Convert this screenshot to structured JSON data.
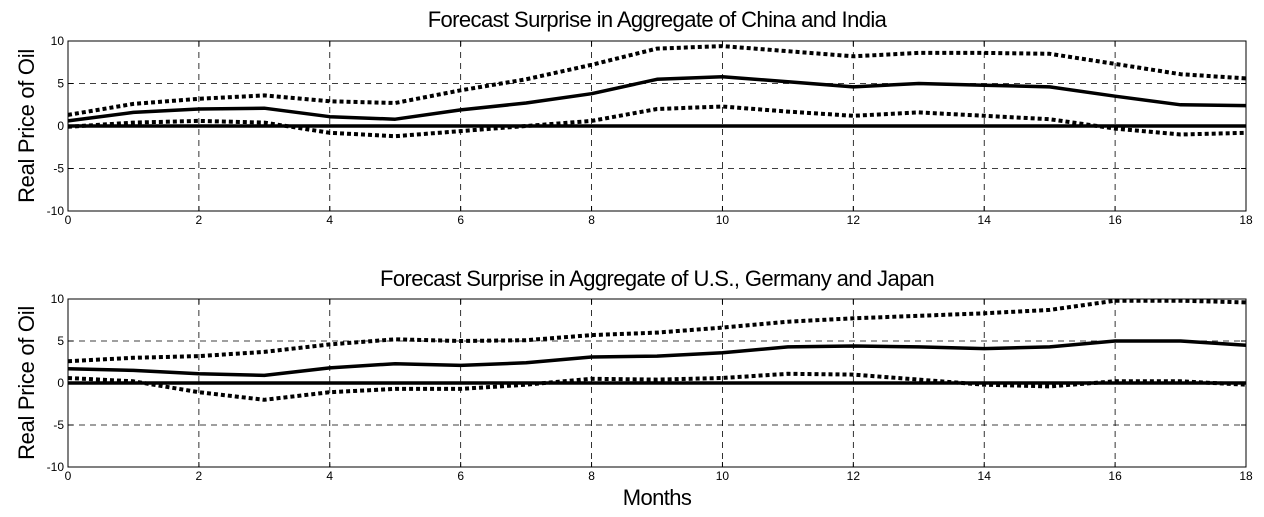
{
  "chart_data": [
    {
      "type": "line",
      "title": "Forecast Surprise in Aggregate of China and India",
      "ylabel": "Real Price of Oil",
      "xlabel": "",
      "xlim": [
        0,
        18
      ],
      "ylim": [
        -10,
        10
      ],
      "xticks": [
        "0",
        "2",
        "4",
        "6",
        "8",
        "10",
        "12",
        "14",
        "16",
        "18"
      ],
      "yticks": [
        "-10",
        "-5",
        "0",
        "5",
        "10"
      ],
      "grid": true,
      "x": [
        0,
        1,
        2,
        3,
        4,
        5,
        6,
        7,
        8,
        9,
        10,
        11,
        12,
        13,
        14,
        15,
        16,
        17,
        18
      ],
      "series": [
        {
          "style": "solid",
          "values": [
            0.6,
            1.6,
            2.0,
            2.1,
            1.1,
            0.8,
            1.9,
            2.7,
            3.8,
            5.5,
            5.8,
            5.2,
            4.6,
            5.0,
            4.8,
            4.6,
            3.5,
            2.5,
            2.4
          ]
        },
        {
          "style": "dotted",
          "values": [
            1.3,
            2.6,
            3.2,
            3.6,
            2.9,
            2.7,
            4.2,
            5.5,
            7.2,
            9.1,
            9.4,
            8.8,
            8.2,
            8.6,
            8.6,
            8.5,
            7.3,
            6.1,
            5.6
          ]
        },
        {
          "style": "dotted",
          "values": [
            -0.1,
            0.4,
            0.6,
            0.4,
            -0.8,
            -1.2,
            -0.6,
            0.0,
            0.6,
            2.0,
            2.3,
            1.7,
            1.2,
            1.6,
            1.2,
            0.8,
            -0.3,
            -1.0,
            -0.8
          ]
        },
        {
          "style": "solid",
          "values": [
            0,
            0,
            0,
            0,
            0,
            0,
            0,
            0,
            0,
            0,
            0,
            0,
            0,
            0,
            0,
            0,
            0,
            0,
            0
          ]
        }
      ]
    },
    {
      "type": "line",
      "title": "Forecast Surprise in Aggregate of U.S., Germany and Japan",
      "ylabel": "Real Price of Oil",
      "xlabel": "Months",
      "xlim": [
        0,
        18
      ],
      "ylim": [
        -10,
        10
      ],
      "xticks": [
        "0",
        "2",
        "4",
        "6",
        "8",
        "10",
        "12",
        "14",
        "16",
        "18"
      ],
      "yticks": [
        "-10",
        "-5",
        "0",
        "5",
        "10"
      ],
      "grid": true,
      "x": [
        0,
        1,
        2,
        3,
        4,
        5,
        6,
        7,
        8,
        9,
        10,
        11,
        12,
        13,
        14,
        15,
        16,
        17,
        18
      ],
      "series": [
        {
          "style": "solid",
          "values": [
            1.7,
            1.5,
            1.1,
            0.9,
            1.8,
            2.3,
            2.1,
            2.4,
            3.1,
            3.2,
            3.6,
            4.3,
            4.4,
            4.3,
            4.1,
            4.3,
            5.0,
            5.0,
            4.5
          ]
        },
        {
          "style": "dotted",
          "values": [
            2.6,
            3.0,
            3.2,
            3.7,
            4.6,
            5.2,
            5.0,
            5.1,
            5.7,
            6.0,
            6.6,
            7.3,
            7.7,
            8.0,
            8.3,
            8.7,
            9.8,
            9.8,
            9.6
          ]
        },
        {
          "style": "dotted",
          "values": [
            0.6,
            0.2,
            -1.1,
            -2.0,
            -1.1,
            -0.7,
            -0.7,
            -0.2,
            0.5,
            0.4,
            0.6,
            1.1,
            1.0,
            0.4,
            -0.2,
            -0.4,
            0.2,
            0.2,
            -0.2
          ]
        },
        {
          "style": "solid",
          "values": [
            0,
            0,
            0,
            0,
            0,
            0,
            0,
            0,
            0,
            0,
            0,
            0,
            0,
            0,
            0,
            0,
            0,
            0,
            0
          ]
        }
      ]
    }
  ]
}
